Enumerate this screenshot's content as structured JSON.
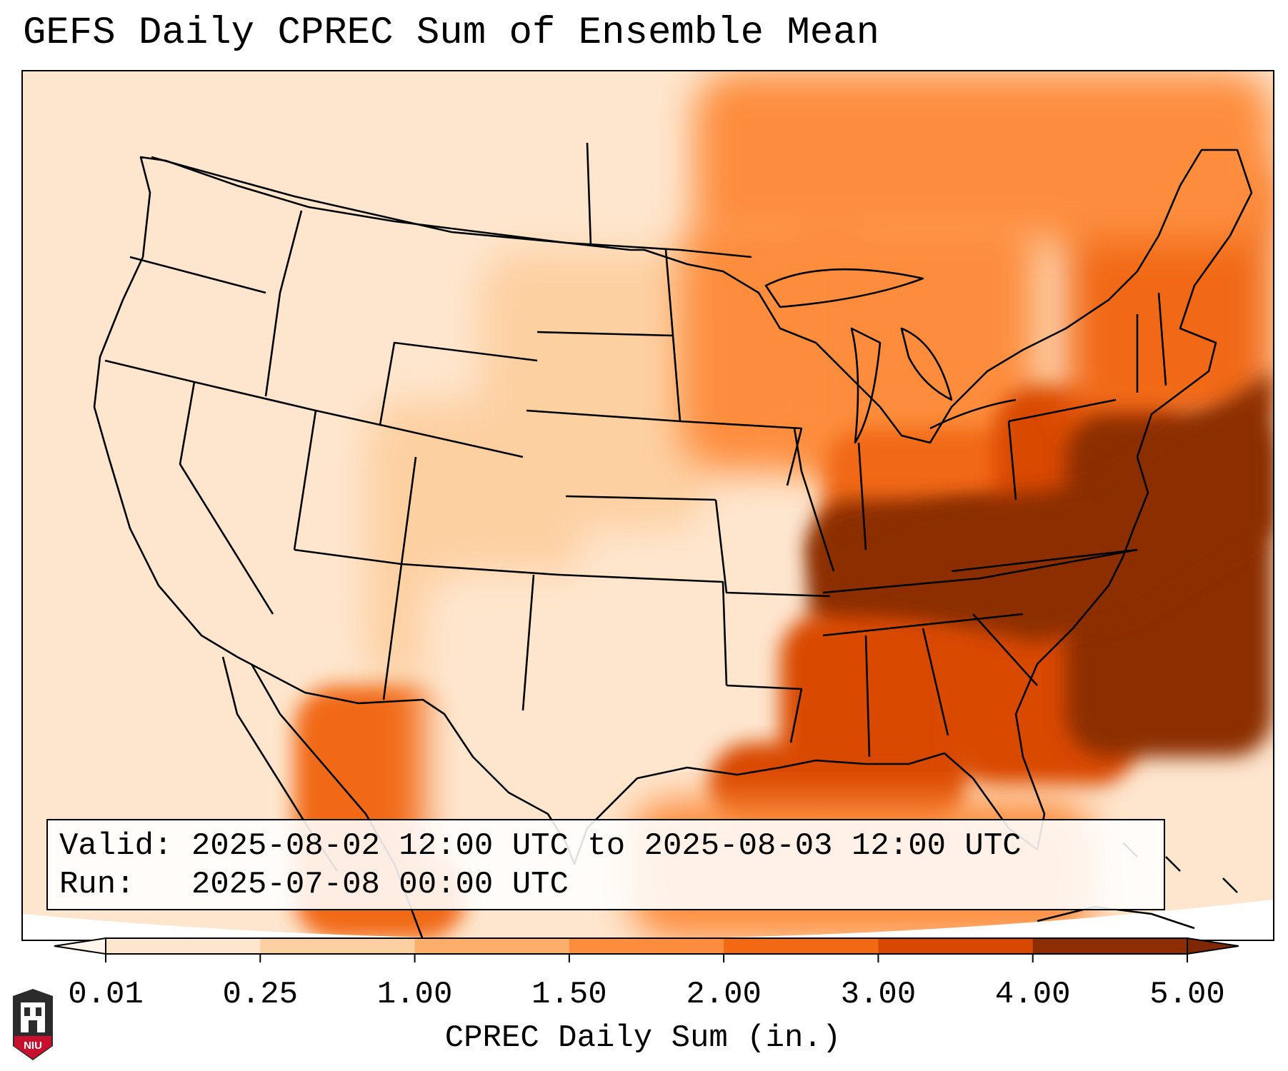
{
  "title": "GEFS Daily CPREC Sum of Ensemble Mean",
  "info": {
    "valid_label": "Valid:",
    "valid_value": "2025-08-02 12:00 UTC to 2025-08-03 12:00 UTC",
    "run_label": "Run:",
    "run_value": "2025-07-08 00:00 UTC"
  },
  "colorbar": {
    "label": "CPREC Daily Sum (in.)",
    "ticks": [
      "0.01",
      "0.25",
      "1.00",
      "1.50",
      "2.00",
      "3.00",
      "4.00",
      "5.00"
    ],
    "colors": [
      "#fee6ce",
      "#fdd0a2",
      "#fdae6b",
      "#fd8d3c",
      "#f16913",
      "#d94801",
      "#8c2d04"
    ],
    "under_color": "#fff5eb",
    "over_color": "#7f2704"
  },
  "logo": {
    "text": "NIU",
    "colors": {
      "shield": "#c8102e",
      "tower": "#2b2b2b"
    }
  },
  "map": {
    "land_outline_color": "#000000",
    "regions": [
      {
        "name": "pacific-northwest",
        "value": 0.15
      },
      {
        "name": "california-coast",
        "value": 0.05
      },
      {
        "name": "great-basin",
        "value": 0.2
      },
      {
        "name": "northern-rockies",
        "value": 0.2
      },
      {
        "name": "four-corners",
        "value": 0.6
      },
      {
        "name": "mexico-sierra-madre",
        "value": 2.4
      },
      {
        "name": "texas",
        "value": 0.2
      },
      {
        "name": "northern-plains",
        "value": 0.5
      },
      {
        "name": "upper-midwest",
        "value": 1.8
      },
      {
        "name": "great-lakes",
        "value": 1.6
      },
      {
        "name": "ohio-valley",
        "value": 2.5
      },
      {
        "name": "tennessee-valley",
        "value": 4.3
      },
      {
        "name": "deep-south",
        "value": 3.2
      },
      {
        "name": "gulf-coast",
        "value": 3.0
      },
      {
        "name": "southeast-coast",
        "value": 3.0
      },
      {
        "name": "mid-atlantic",
        "value": 3.5
      },
      {
        "name": "new-england",
        "value": 2.4
      },
      {
        "name": "atlantic-offshore",
        "value": 4.5
      },
      {
        "name": "gulf-of-mexico",
        "value": 1.8
      },
      {
        "name": "southern-canada",
        "value": 1.6
      }
    ]
  }
}
